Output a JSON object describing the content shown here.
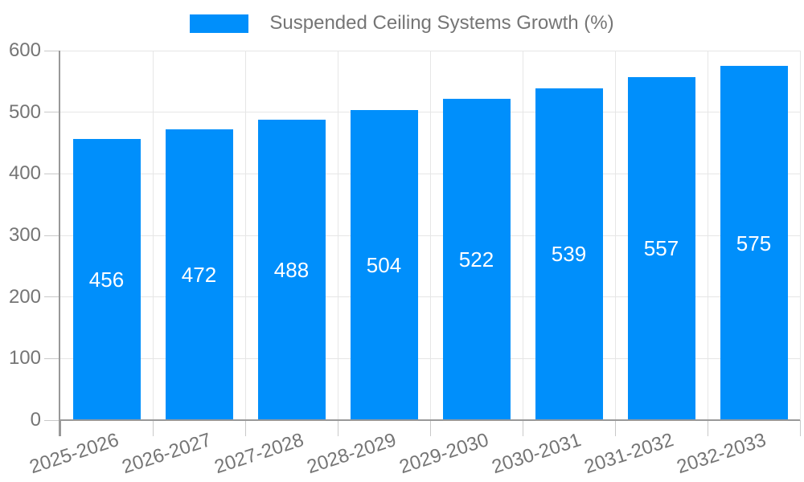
{
  "chart_data": {
    "type": "bar",
    "title": "",
    "legend": "Suspended Ceiling Systems Growth (%)",
    "legend_position": "top-center",
    "categories": [
      "2025-2026",
      "2026-2027",
      "2027-2028",
      "2028-2029",
      "2029-2030",
      "2030-2031",
      "2031-2032",
      "2032-2033"
    ],
    "values": [
      456,
      472,
      488,
      504,
      522,
      539,
      557,
      575
    ],
    "xlabel": "",
    "ylabel": "",
    "ylim": [
      0,
      600
    ],
    "yticks": [
      0,
      100,
      200,
      300,
      400,
      500,
      600
    ],
    "grid": true,
    "bar_label_position": "center-of-bar",
    "x_label_rotation_deg": -18,
    "colors": {
      "bar": "#008FFB",
      "bar_label": "#FFFFFF",
      "axis_text": "#757575",
      "grid_line": "#E6E6E6",
      "tick_line": "#C9C9C9",
      "axis_line": "#999999"
    }
  }
}
